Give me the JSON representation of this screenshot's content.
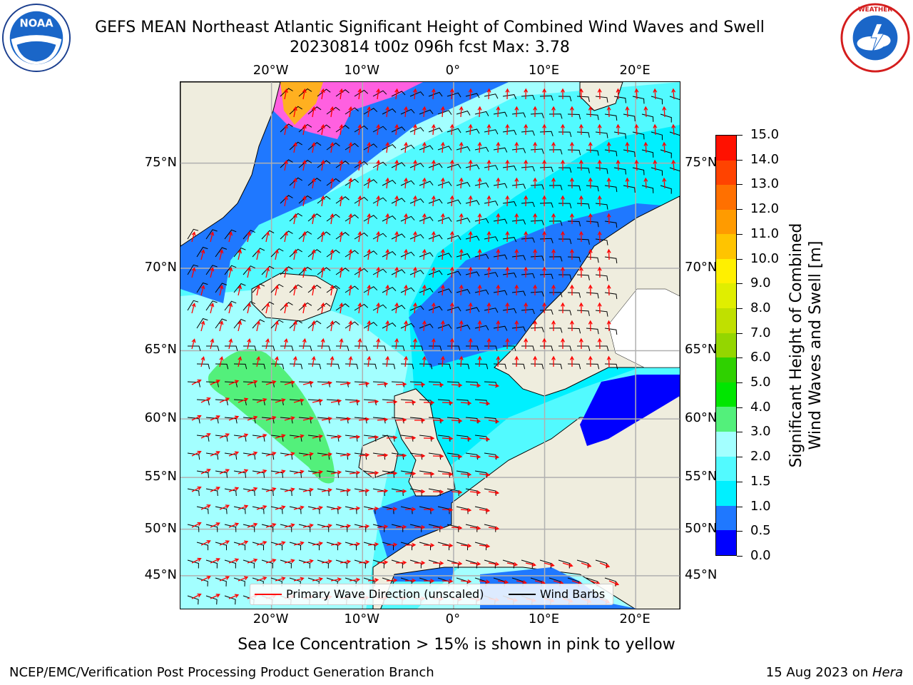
{
  "header": {
    "title_line1": "GEFS MEAN Northeast Atlantic Significant Height of Combined Wind Waves and Swell",
    "title_line2": "20230814 t00z 096h fcst   Max: 3.78"
  },
  "logos": {
    "noaa": {
      "name": "noaa-logo",
      "text": "NOAA",
      "ring_text": "NATIONAL OCEANIC AND ATMOSPHERIC ADMINISTRATION · U.S. DEPARTMENT OF COMMERCE"
    },
    "nws": {
      "name": "nws-logo",
      "ring_text": "NATIONAL WEATHER SERVICE"
    }
  },
  "map": {
    "lon_range": [
      -30,
      25
    ],
    "lat_range": [
      41,
      78
    ],
    "x_ticks": [
      "20°W",
      "10°W",
      "0°",
      "10°E",
      "20°E"
    ],
    "x_tick_values": [
      -20,
      -10,
      0,
      10,
      20
    ],
    "y_ticks": [
      "75°N",
      "70°N",
      "65°N",
      "60°N",
      "55°N",
      "50°N",
      "45°N"
    ],
    "y_tick_values": [
      75,
      70,
      65,
      60,
      55,
      50,
      45
    ],
    "grid": true,
    "colors": {
      "land": "#efedde",
      "ice_land": "#ffffff",
      "grid": "#b0b0b0",
      "wave_arrow": "#ff0000",
      "wind_barb": "#000000"
    }
  },
  "legend": {
    "placement": "lower-center",
    "items": [
      {
        "label": "Primary Wave Direction (unscaled)",
        "color": "#ff0000"
      },
      {
        "label": "Wind Barbs",
        "color": "#000000"
      }
    ]
  },
  "colorbar": {
    "label_line1": "Significant Height of Combined",
    "label_line2": "Wind Waves and Swell [m]",
    "levels": [
      "0.0",
      "0.5",
      "1.0",
      "1.5",
      "2.0",
      "3.0",
      "4.0",
      "5.0",
      "6.0",
      "7.0",
      "8.0",
      "9.0",
      "10.0",
      "11.0",
      "12.0",
      "13.0",
      "14.0",
      "15.0"
    ],
    "colors": [
      "#0000ff",
      "#1f78ff",
      "#00f0ff",
      "#52faff",
      "#a3ffff",
      "#53f07b",
      "#00e600",
      "#2fd100",
      "#94d600",
      "#c0e000",
      "#e0ee00",
      "#fff000",
      "#ffc400",
      "#ff9b00",
      "#ff7000",
      "#ff4300",
      "#ff1100"
    ]
  },
  "notes": {
    "ice": "Sea Ice Concentration > 15% is shown in pink to yellow"
  },
  "footer": {
    "left": "NCEP/EMC/Verification Post Processing Product Generation Branch",
    "right_prefix": "15 Aug 2023 on ",
    "right_host": "Hera"
  }
}
